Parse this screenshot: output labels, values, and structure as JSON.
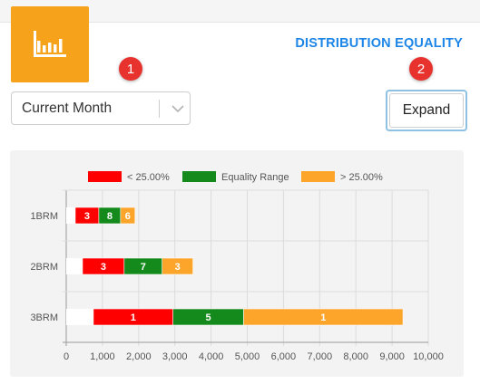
{
  "header": {
    "app_icon": "bar-chart-icon",
    "title": "DISTRIBUTION EQUALITY"
  },
  "badges": [
    "1",
    "2"
  ],
  "period_select": {
    "value": "Current Month",
    "icon": "chevron-down-icon"
  },
  "expand_button": {
    "label": "Expand"
  },
  "colors": {
    "accent": "#f7a21b",
    "title": "#1d86e8",
    "badge": "#e8322e",
    "low": "#ff0000",
    "equal": "#138a1b",
    "high": "#fca52a"
  },
  "chart_data": {
    "type": "bar",
    "orientation": "horizontal",
    "stacked": true,
    "categories": [
      "1BRM",
      "2BRM",
      "3BRM"
    ],
    "legend": {
      "placement": "top",
      "entries": [
        "< 25.00%",
        "Equality Range",
        "> 25.00%"
      ]
    },
    "xlim": [
      0,
      10000
    ],
    "xticks": [
      "0",
      "1,000",
      "2,000",
      "3,000",
      "4,000",
      "5,000",
      "6,000",
      "7,000",
      "8,000",
      "9,000",
      "10,000"
    ],
    "grid": true,
    "offsets": [
      250,
      450,
      750
    ],
    "series": [
      {
        "name": "< 25.00%",
        "color": "#ff0000",
        "values": [
          650,
          1150,
          2200
        ],
        "labels": [
          "3",
          "3",
          "1"
        ]
      },
      {
        "name": "Equality Range",
        "color": "#138a1b",
        "values": [
          600,
          1050,
          1950
        ],
        "labels": [
          "8",
          "7",
          "5"
        ]
      },
      {
        "name": "> 25.00%",
        "color": "#fca52a",
        "values": [
          400,
          850,
          4400
        ],
        "labels": [
          "6",
          "3",
          "1"
        ]
      }
    ]
  }
}
